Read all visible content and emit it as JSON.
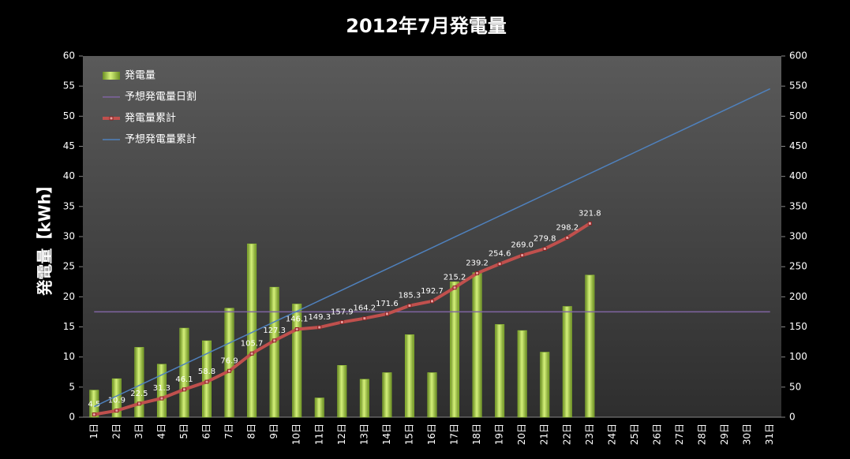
{
  "chart_data": {
    "type": "bar",
    "title": "2012年7月発電量",
    "y_label": "発電量【kWh】",
    "categories": [
      "1日",
      "2日",
      "3日",
      "4日",
      "5日",
      "6日",
      "7日",
      "8日",
      "9日",
      "10日",
      "11日",
      "12日",
      "13日",
      "14日",
      "15日",
      "16日",
      "17日",
      "18日",
      "19日",
      "20日",
      "21日",
      "22日",
      "23日",
      "24日",
      "25日",
      "26日",
      "27日",
      "28日",
      "29日",
      "30日",
      "31日"
    ],
    "series": [
      {
        "name": "発電量",
        "type": "bar",
        "color": "#9acd32",
        "values": [
          4.5,
          6.4,
          11.6,
          8.8,
          14.8,
          12.7,
          18.1,
          28.8,
          21.6,
          18.8,
          3.2,
          8.6,
          6.3,
          7.4,
          13.7,
          7.4,
          22.5,
          24.0,
          15.4,
          14.4,
          10.8,
          18.4,
          23.6,
          null,
          null,
          null,
          null,
          null,
          null,
          null,
          null
        ]
      },
      {
        "name": "予想発電量日割",
        "type": "line",
        "color": "#8064a2",
        "values": [
          17.5,
          17.5,
          17.5,
          17.5,
          17.5,
          17.5,
          17.5,
          17.5,
          17.5,
          17.5,
          17.5,
          17.5,
          17.5,
          17.5,
          17.5,
          17.5,
          17.5,
          17.5,
          17.5,
          17.5,
          17.5,
          17.5,
          17.5,
          17.5,
          17.5,
          17.5,
          17.5,
          17.5,
          17.5,
          17.5,
          17.5
        ]
      },
      {
        "name": "発電量累計",
        "type": "line",
        "axis": "y2",
        "color": "#c0504d",
        "markers": true,
        "values": [
          4.5,
          10.9,
          22.5,
          31.3,
          46.1,
          58.8,
          76.9,
          105.7,
          127.3,
          146.1,
          149.3,
          157.9,
          164.2,
          171.6,
          185.3,
          192.7,
          215.2,
          239.2,
          254.6,
          269.0,
          279.8,
          298.2,
          321.8,
          null,
          null,
          null,
          null,
          null,
          null,
          null,
          null
        ],
        "value_labels": [
          "4.5",
          "10.9",
          "22.5",
          "31.3",
          "46.1",
          "58.8",
          "76.9",
          "105.7",
          "127.3",
          "146.1",
          "149.3",
          "157.9",
          "164.2",
          "171.6",
          "185.3",
          "192.7",
          "215.2",
          "239.2",
          "254.6",
          "269.0",
          "279.8",
          "298.2",
          "321.8",
          null,
          null,
          null,
          null,
          null,
          null,
          null,
          null
        ]
      },
      {
        "name": "予想発電量累計",
        "type": "line",
        "axis": "y2",
        "color": "#4f81bd",
        "values": [
          17.6,
          35.2,
          52.8,
          70.4,
          88,
          105.6,
          123.2,
          140.8,
          158.4,
          176,
          193.6,
          211.2,
          228.8,
          246.4,
          264,
          281.6,
          299.2,
          316.8,
          334.4,
          352,
          369.6,
          387.2,
          404.8,
          422.4,
          440,
          457.6,
          475.2,
          492.8,
          510.4,
          528,
          545.6
        ]
      }
    ],
    "ylim": [
      0,
      60
    ],
    "yticks": [
      0,
      5,
      10,
      15,
      20,
      25,
      30,
      35,
      40,
      45,
      50,
      55,
      60
    ],
    "y2lim": [
      0,
      600
    ],
    "y2ticks": [
      0,
      50,
      100,
      150,
      200,
      250,
      300,
      350,
      400,
      450,
      500,
      550,
      600
    ],
    "legend": "upper left"
  }
}
